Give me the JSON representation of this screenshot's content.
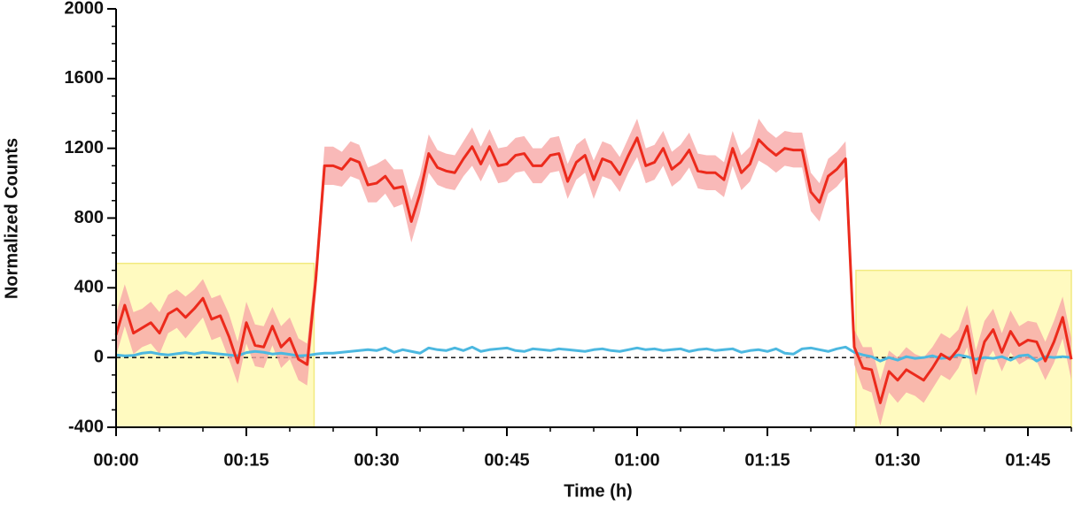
{
  "chart_data": {
    "type": "line",
    "x_label": "Time (h)",
    "y_label": "Normalized Counts",
    "xlim": [
      0,
      110
    ],
    "ylim": [
      -400,
      2000
    ],
    "xticks": [
      {
        "value": 0,
        "label": "00:00"
      },
      {
        "value": 15,
        "label": "00:15"
      },
      {
        "value": 30,
        "label": "00:30"
      },
      {
        "value": 45,
        "label": "00:45"
      },
      {
        "value": 60,
        "label": "01:00"
      },
      {
        "value": 75,
        "label": "01:15"
      },
      {
        "value": 90,
        "label": "01:30"
      },
      {
        "value": 105,
        "label": "01:45"
      }
    ],
    "yticks": [
      -400,
      0,
      400,
      800,
      1200,
      1600,
      2000
    ],
    "reference_line": 0,
    "highlights": [
      {
        "x": [
          0,
          22.8
        ],
        "y": [
          -400,
          540
        ],
        "color": "#fffac0"
      },
      {
        "x": [
          85.2,
          110
        ],
        "y": [
          -400,
          500
        ],
        "color": "#fffac0"
      }
    ],
    "x": [
      0,
      1,
      2,
      3,
      4,
      5,
      6,
      7,
      8,
      9,
      10,
      11,
      12,
      13,
      14,
      15,
      16,
      17,
      18,
      19,
      20,
      21,
      22,
      23,
      24,
      25,
      26,
      27,
      28,
      29,
      30,
      31,
      32,
      33,
      34,
      35,
      36,
      37,
      38,
      39,
      40,
      41,
      42,
      43,
      44,
      45,
      46,
      47,
      48,
      49,
      50,
      51,
      52,
      53,
      54,
      55,
      56,
      57,
      58,
      59,
      60,
      61,
      62,
      63,
      64,
      65,
      66,
      67,
      68,
      69,
      70,
      71,
      72,
      73,
      74,
      75,
      76,
      77,
      78,
      79,
      80,
      81,
      82,
      83,
      84,
      85,
      86,
      87,
      88,
      89,
      90,
      91,
      92,
      93,
      94,
      95,
      96,
      97,
      98,
      99,
      100,
      101,
      102,
      103,
      104,
      105,
      106,
      107,
      108,
      109,
      110
    ],
    "series": [
      {
        "color": "#ec2a1c",
        "band_color": "#f7a8a6",
        "values": [
          130,
          300,
          140,
          170,
          200,
          140,
          250,
          280,
          230,
          280,
          340,
          220,
          240,
          120,
          -30,
          200,
          70,
          60,
          180,
          60,
          110,
          -10,
          -40,
          450,
          1100,
          1100,
          1080,
          1140,
          1120,
          990,
          1000,
          1040,
          970,
          980,
          780,
          940,
          1170,
          1090,
          1070,
          1060,
          1140,
          1210,
          1110,
          1210,
          1100,
          1110,
          1160,
          1170,
          1100,
          1100,
          1160,
          1170,
          1010,
          1120,
          1160,
          1020,
          1140,
          1120,
          1050,
          1160,
          1260,
          1100,
          1120,
          1200,
          1080,
          1120,
          1190,
          1070,
          1060,
          1060,
          1020,
          1200,
          1060,
          1110,
          1250,
          1200,
          1160,
          1200,
          1190,
          1190,
          950,
          890,
          1040,
          1080,
          1140,
          60,
          -60,
          -70,
          -260,
          -80,
          -130,
          -70,
          -100,
          -130,
          -60,
          20,
          -10,
          50,
          180,
          -90,
          90,
          160,
          30,
          150,
          70,
          100,
          90,
          -20,
          90,
          230,
          -10
        ],
        "errors": [
          120,
          120,
          120,
          110,
          120,
          120,
          110,
          110,
          120,
          110,
          110,
          120,
          120,
          130,
          120,
          120,
          120,
          120,
          110,
          120,
          120,
          120,
          120,
          100,
          110,
          110,
          100,
          100,
          100,
          100,
          110,
          100,
          110,
          100,
          120,
          110,
          110,
          100,
          100,
          100,
          100,
          110,
          100,
          100,
          100,
          100,
          100,
          100,
          100,
          100,
          100,
          100,
          100,
          100,
          100,
          110,
          100,
          100,
          100,
          100,
          110,
          100,
          100,
          100,
          100,
          100,
          100,
          100,
          100,
          100,
          100,
          100,
          100,
          100,
          120,
          100,
          100,
          100,
          100,
          100,
          110,
          110,
          100,
          100,
          100,
          100,
          120,
          130,
          130,
          120,
          130,
          130,
          120,
          130,
          120,
          120,
          120,
          110,
          120,
          130,
          120,
          120,
          110,
          120,
          110,
          110,
          110,
          110,
          120,
          120,
          120
        ]
      },
      {
        "color": "#4cb8e0",
        "values": [
          15,
          10,
          12,
          25,
          30,
          20,
          15,
          22,
          28,
          20,
          30,
          25,
          20,
          15,
          10,
          28,
          35,
          30,
          20,
          25,
          18,
          10,
          12,
          20,
          25,
          25,
          30,
          35,
          40,
          45,
          40,
          55,
          30,
          45,
          35,
          25,
          55,
          45,
          40,
          55,
          40,
          60,
          35,
          45,
          50,
          55,
          40,
          35,
          50,
          45,
          40,
          50,
          45,
          40,
          35,
          45,
          50,
          40,
          35,
          45,
          55,
          45,
          50,
          40,
          45,
          50,
          35,
          45,
          50,
          40,
          45,
          50,
          30,
          40,
          45,
          35,
          50,
          25,
          20,
          50,
          55,
          45,
          35,
          50,
          60,
          30,
          15,
          5,
          -20,
          0,
          -15,
          5,
          -5,
          0,
          10,
          -5,
          0,
          15,
          5,
          -10,
          0,
          -5,
          5,
          -15,
          10,
          15,
          -20,
          5,
          0,
          5,
          0
        ]
      }
    ]
  }
}
